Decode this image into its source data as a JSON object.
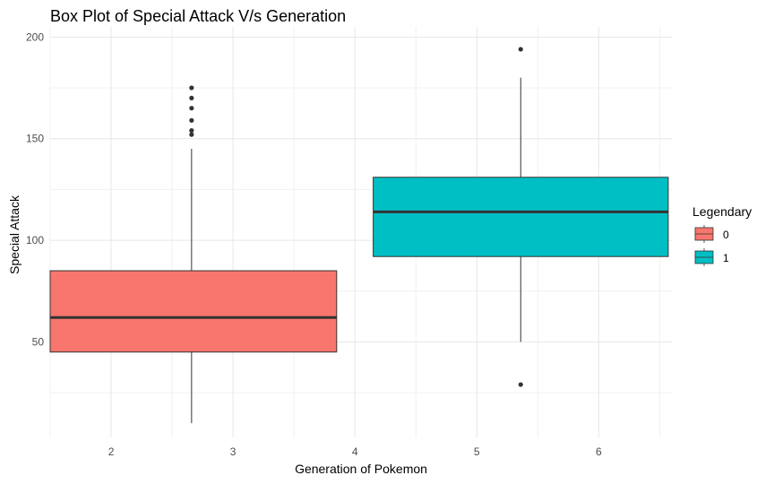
{
  "chart_data": {
    "type": "boxplot",
    "title": "Box Plot of Special Attack V/s Generation",
    "xlabel": "Generation of Pokemon",
    "ylabel": "Special Attack",
    "xlim": [
      1.5,
      6.6
    ],
    "ylim": [
      3,
      205
    ],
    "x_ticks": [
      "2",
      "3",
      "4",
      "5",
      "6"
    ],
    "y_ticks": [
      "50",
      "100",
      "150",
      "200"
    ],
    "grid": true,
    "legend": {
      "title": "Legendary",
      "position": "right",
      "entries": [
        {
          "label": "0",
          "color": "#F8766D"
        },
        {
          "label": "1",
          "color": "#00BFC4"
        }
      ]
    },
    "boxes": [
      {
        "group": "0",
        "color": "#F8766D",
        "x_center": 2.66,
        "x_range": [
          1.5,
          3.85
        ],
        "whisker_low": 10,
        "q1": 45,
        "median": 62,
        "q3": 85,
        "whisker_high": 145,
        "outliers": [
          152,
          154,
          159,
          165,
          170,
          175
        ]
      },
      {
        "group": "1",
        "color": "#00BFC4",
        "x_center": 5.36,
        "x_range": [
          4.15,
          6.57
        ],
        "whisker_low": 50,
        "q1": 92,
        "median": 114,
        "q3": 131,
        "whisker_high": 180,
        "outliers": [
          29,
          194
        ]
      }
    ]
  }
}
